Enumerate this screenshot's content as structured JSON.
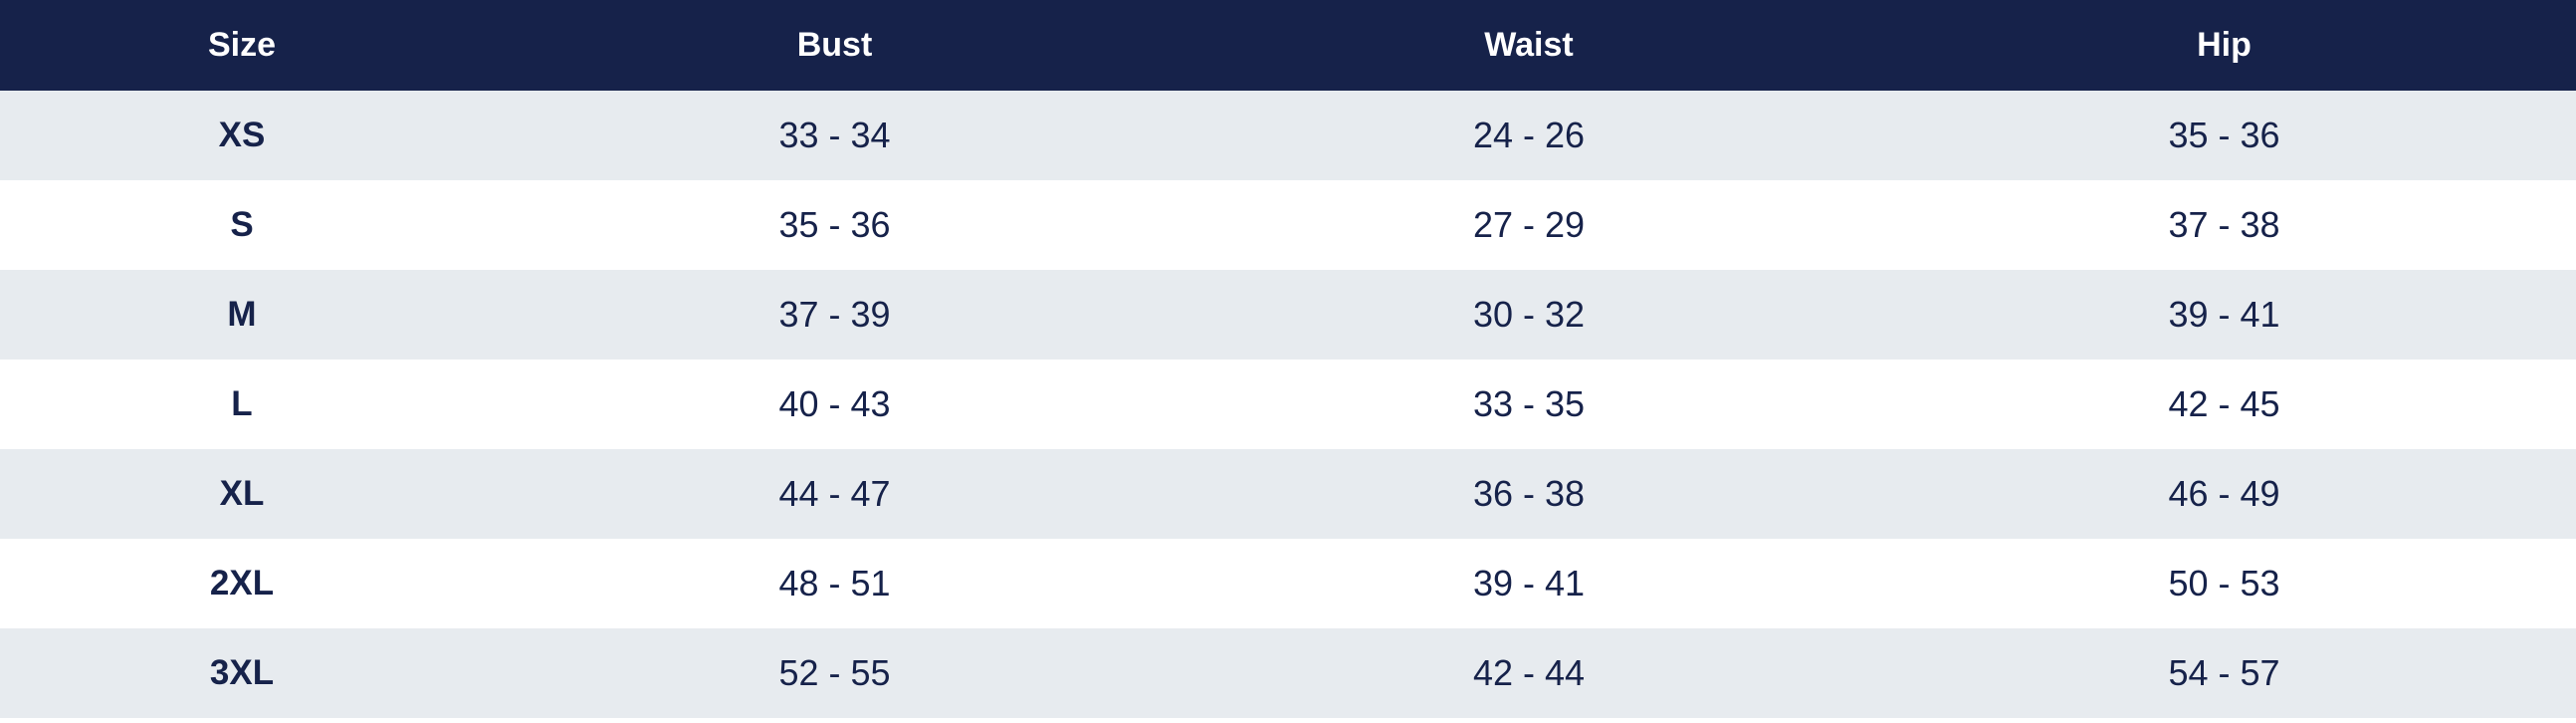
{
  "colors": {
    "header_background": "#16224a",
    "header_text": "#ffffff",
    "row_alt_background": "#e7ebef",
    "row_background": "#ffffff",
    "body_text": "#16224a"
  },
  "table": {
    "headers": {
      "size": "Size",
      "bust": "Bust",
      "waist": "Waist",
      "hip": "Hip"
    },
    "rows": [
      {
        "size": "XS",
        "bust": "33 - 34",
        "waist": "24 - 26",
        "hip": "35 - 36"
      },
      {
        "size": "S",
        "bust": "35 - 36",
        "waist": "27 - 29",
        "hip": "37 - 38"
      },
      {
        "size": "M",
        "bust": "37 - 39",
        "waist": "30 - 32",
        "hip": "39 - 41"
      },
      {
        "size": "L",
        "bust": "40 - 43",
        "waist": "33 - 35",
        "hip": "42 - 45"
      },
      {
        "size": "XL",
        "bust": "44 - 47",
        "waist": "36 - 38",
        "hip": "46 - 49"
      },
      {
        "size": "2XL",
        "bust": "48 - 51",
        "waist": "39 - 41",
        "hip": "50 - 53"
      },
      {
        "size": "3XL",
        "bust": "52 - 55",
        "waist": "42 - 44",
        "hip": "54 - 57"
      }
    ]
  }
}
